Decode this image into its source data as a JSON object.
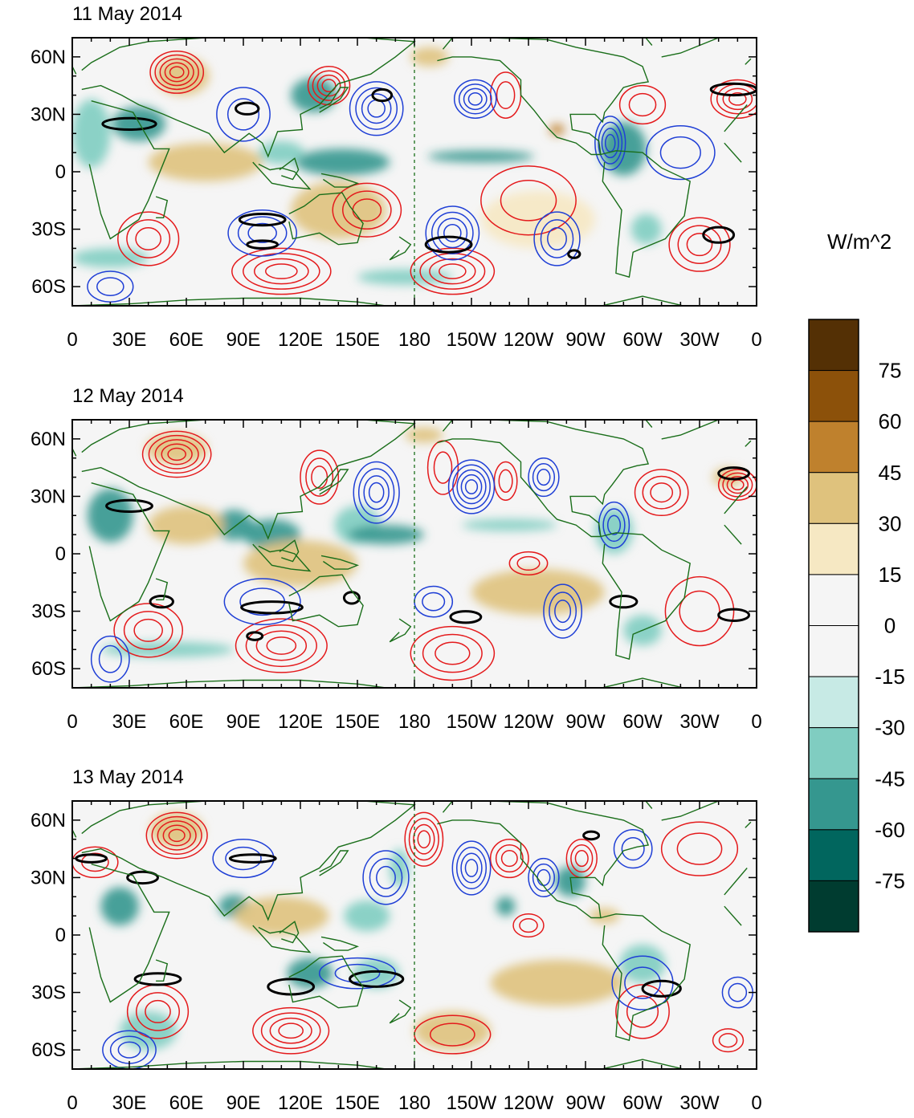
{
  "chart_data": {
    "type": "heatmap",
    "shared_colorbar": {
      "unit_label": "W/m^2",
      "levels": [
        75,
        60,
        45,
        30,
        15,
        0,
        -15,
        -30,
        -45,
        -60,
        -75
      ],
      "colors": [
        "#543005",
        "#8c510a",
        "#bf812d",
        "#dfc27d",
        "#f6e8c3",
        "#f5f5f5",
        "#f5f5f5",
        "#c7eae5",
        "#80cdc1",
        "#35978f",
        "#01665e",
        "#003c30"
      ]
    },
    "x_ticks": [
      "0",
      "30E",
      "60E",
      "90E",
      "120E",
      "150E",
      "180",
      "150W",
      "120W",
      "90W",
      "60W",
      "30W",
      "0"
    ],
    "y_ticks": [
      "60N",
      "30N",
      "0",
      "30S",
      "60S"
    ],
    "x_range_deg": [
      0,
      360
    ],
    "y_range_deg": [
      -70,
      70
    ],
    "dateline_marker_deg": 180,
    "contour_colors": {
      "positive": "#e41a1c",
      "negative": "#1f3fd6",
      "highlight": "#000000",
      "coastline": "#1a6e1a"
    },
    "panels": [
      {
        "title": "11 May 2014",
        "shading": [
          {
            "lon": 35,
            "lat": 25,
            "v": -55,
            "rx": 14,
            "ry": 9
          },
          {
            "lon": 10,
            "lat": 20,
            "v": -45,
            "rx": 10,
            "ry": 18
          },
          {
            "lon": 127,
            "lat": 40,
            "v": -60,
            "rx": 12,
            "ry": 9
          },
          {
            "lon": 142,
            "lat": 5,
            "v": -55,
            "rx": 25,
            "ry": 7
          },
          {
            "lon": 215,
            "lat": 8,
            "v": -60,
            "rx": 28,
            "ry": 3
          },
          {
            "lon": 290,
            "lat": 12,
            "v": -50,
            "rx": 12,
            "ry": 14
          },
          {
            "lon": 302,
            "lat": -30,
            "v": -45,
            "rx": 8,
            "ry": 8
          },
          {
            "lon": 110,
            "lat": 10,
            "v": -40,
            "rx": 12,
            "ry": 6
          },
          {
            "lon": 140,
            "lat": -20,
            "v": 30,
            "rx": 25,
            "ry": 15
          },
          {
            "lon": 70,
            "lat": 5,
            "v": 30,
            "rx": 30,
            "ry": 10
          },
          {
            "lon": 255,
            "lat": 22,
            "v": 45,
            "rx": 4,
            "ry": 3
          },
          {
            "lon": 188,
            "lat": 60,
            "v": 35,
            "rx": 10,
            "ry": 5
          },
          {
            "lon": 245,
            "lat": -25,
            "v": 25,
            "rx": 30,
            "ry": 15
          },
          {
            "lon": 58,
            "lat": 50,
            "v": 30,
            "rx": 14,
            "ry": 10
          },
          {
            "lon": 175,
            "lat": -55,
            "v": -40,
            "rx": 25,
            "ry": 4
          },
          {
            "lon": 20,
            "lat": -45,
            "v": -35,
            "rx": 20,
            "ry": 5
          }
        ],
        "red_centers": [
          {
            "lon": 55,
            "lat": 52,
            "rx": 14,
            "ry": 11,
            "n": 5
          },
          {
            "lon": 135,
            "lat": 45,
            "rx": 11,
            "ry": 10,
            "n": 4
          },
          {
            "lon": 155,
            "lat": -20,
            "rx": 18,
            "ry": 14,
            "n": 3
          },
          {
            "lon": 110,
            "lat": -52,
            "rx": 26,
            "ry": 12,
            "n": 4
          },
          {
            "lon": 40,
            "lat": -35,
            "rx": 16,
            "ry": 14,
            "n": 3
          },
          {
            "lon": 200,
            "lat": -52,
            "rx": 22,
            "ry": 12,
            "n": 4
          },
          {
            "lon": 228,
            "lat": 40,
            "rx": 8,
            "ry": 12,
            "n": 2
          },
          {
            "lon": 240,
            "lat": -15,
            "rx": 25,
            "ry": 18,
            "n": 2
          },
          {
            "lon": 300,
            "lat": 35,
            "rx": 12,
            "ry": 10,
            "n": 2
          },
          {
            "lon": 350,
            "lat": 38,
            "rx": 14,
            "ry": 10,
            "n": 4
          },
          {
            "lon": 330,
            "lat": -38,
            "rx": 16,
            "ry": 14,
            "n": 3
          }
        ],
        "blue_centers": [
          {
            "lon": 100,
            "lat": -32,
            "rx": 18,
            "ry": 12,
            "n": 3
          },
          {
            "lon": 160,
            "lat": 33,
            "rx": 14,
            "ry": 14,
            "n": 4
          },
          {
            "lon": 200,
            "lat": -32,
            "rx": 14,
            "ry": 14,
            "n": 4
          },
          {
            "lon": 212,
            "lat": 38,
            "rx": 11,
            "ry": 10,
            "n": 4
          },
          {
            "lon": 255,
            "lat": -35,
            "rx": 12,
            "ry": 14,
            "n": 3
          },
          {
            "lon": 283,
            "lat": 15,
            "rx": 8,
            "ry": 14,
            "n": 4
          },
          {
            "lon": 90,
            "lat": 30,
            "rx": 14,
            "ry": 14,
            "n": 2
          },
          {
            "lon": 20,
            "lat": -60,
            "rx": 12,
            "ry": 8,
            "n": 2
          },
          {
            "lon": 320,
            "lat": 10,
            "rx": 18,
            "ry": 14,
            "n": 2
          }
        ],
        "black_loops": [
          {
            "lon": 30,
            "lat": 25,
            "rx": 14,
            "ry": 3
          },
          {
            "lon": 92,
            "lat": 33,
            "rx": 6,
            "ry": 3
          },
          {
            "lon": 100,
            "lat": -25,
            "rx": 12,
            "ry": 3
          },
          {
            "lon": 100,
            "lat": -38,
            "rx": 8,
            "ry": 2
          },
          {
            "lon": 163,
            "lat": 40,
            "rx": 5,
            "ry": 3
          },
          {
            "lon": 198,
            "lat": -38,
            "rx": 12,
            "ry": 4
          },
          {
            "lon": 264,
            "lat": -43,
            "rx": 3,
            "ry": 2
          },
          {
            "lon": 348,
            "lat": 43,
            "rx": 12,
            "ry": 3
          },
          {
            "lon": 340,
            "lat": -33,
            "rx": 8,
            "ry": 4
          }
        ]
      },
      {
        "title": "12 May 2014",
        "shading": [
          {
            "lon": 20,
            "lat": 20,
            "v": -55,
            "rx": 12,
            "ry": 14
          },
          {
            "lon": 85,
            "lat": 15,
            "v": -60,
            "rx": 10,
            "ry": 8
          },
          {
            "lon": 105,
            "lat": 10,
            "v": -50,
            "rx": 15,
            "ry": 8
          },
          {
            "lon": 150,
            "lat": 15,
            "v": -45,
            "rx": 12,
            "ry": 10
          },
          {
            "lon": 165,
            "lat": 10,
            "v": -50,
            "rx": 20,
            "ry": 5
          },
          {
            "lon": 230,
            "lat": 15,
            "v": -40,
            "rx": 25,
            "ry": 3
          },
          {
            "lon": 285,
            "lat": 12,
            "v": -45,
            "rx": 10,
            "ry": 12
          },
          {
            "lon": 300,
            "lat": -40,
            "v": -45,
            "rx": 10,
            "ry": 8
          },
          {
            "lon": 60,
            "lat": 15,
            "v": 30,
            "rx": 20,
            "ry": 10
          },
          {
            "lon": 120,
            "lat": -5,
            "v": 30,
            "rx": 30,
            "ry": 12
          },
          {
            "lon": 55,
            "lat": 55,
            "v": 30,
            "rx": 16,
            "ry": 8
          },
          {
            "lon": 185,
            "lat": 62,
            "v": 30,
            "rx": 10,
            "ry": 4
          },
          {
            "lon": 245,
            "lat": -20,
            "v": 30,
            "rx": 35,
            "ry": 12
          },
          {
            "lon": 345,
            "lat": 40,
            "v": 35,
            "rx": 8,
            "ry": 5
          },
          {
            "lon": 50,
            "lat": -50,
            "v": -40,
            "rx": 35,
            "ry": 4
          }
        ],
        "red_centers": [
          {
            "lon": 55,
            "lat": 52,
            "rx": 18,
            "ry": 12,
            "n": 5
          },
          {
            "lon": 130,
            "lat": 40,
            "rx": 10,
            "ry": 14,
            "n": 3
          },
          {
            "lon": 110,
            "lat": -48,
            "rx": 24,
            "ry": 14,
            "n": 4
          },
          {
            "lon": 40,
            "lat": -40,
            "rx": 18,
            "ry": 14,
            "n": 3
          },
          {
            "lon": 200,
            "lat": -52,
            "rx": 22,
            "ry": 14,
            "n": 3
          },
          {
            "lon": 195,
            "lat": 45,
            "rx": 8,
            "ry": 14,
            "n": 2
          },
          {
            "lon": 228,
            "lat": 38,
            "rx": 6,
            "ry": 10,
            "n": 2
          },
          {
            "lon": 310,
            "lat": 32,
            "rx": 14,
            "ry": 12,
            "n": 3
          },
          {
            "lon": 350,
            "lat": 36,
            "rx": 10,
            "ry": 8,
            "n": 4
          },
          {
            "lon": 240,
            "lat": -5,
            "rx": 10,
            "ry": 6,
            "n": 2
          },
          {
            "lon": 330,
            "lat": -30,
            "rx": 18,
            "ry": 18,
            "n": 2
          }
        ],
        "blue_centers": [
          {
            "lon": 100,
            "lat": -25,
            "rx": 20,
            "ry": 12,
            "n": 2
          },
          {
            "lon": 160,
            "lat": 32,
            "rx": 12,
            "ry": 16,
            "n": 4
          },
          {
            "lon": 210,
            "lat": 35,
            "rx": 12,
            "ry": 14,
            "n": 5
          },
          {
            "lon": 248,
            "lat": 40,
            "rx": 8,
            "ry": 10,
            "n": 3
          },
          {
            "lon": 258,
            "lat": -30,
            "rx": 10,
            "ry": 14,
            "n": 3
          },
          {
            "lon": 285,
            "lat": 15,
            "rx": 8,
            "ry": 12,
            "n": 3
          },
          {
            "lon": 20,
            "lat": -55,
            "rx": 10,
            "ry": 12,
            "n": 2
          },
          {
            "lon": 190,
            "lat": -25,
            "rx": 10,
            "ry": 8,
            "n": 2
          }
        ],
        "black_loops": [
          {
            "lon": 30,
            "lat": 25,
            "rx": 12,
            "ry": 3
          },
          {
            "lon": 47,
            "lat": -25,
            "rx": 6,
            "ry": 3
          },
          {
            "lon": 105,
            "lat": -28,
            "rx": 16,
            "ry": 3
          },
          {
            "lon": 96,
            "lat": -43,
            "rx": 4,
            "ry": 2
          },
          {
            "lon": 147,
            "lat": -23,
            "rx": 4,
            "ry": 3
          },
          {
            "lon": 207,
            "lat": -33,
            "rx": 8,
            "ry": 3
          },
          {
            "lon": 290,
            "lat": -25,
            "rx": 7,
            "ry": 3
          },
          {
            "lon": 348,
            "lat": 42,
            "rx": 8,
            "ry": 3
          },
          {
            "lon": 348,
            "lat": -32,
            "rx": 8,
            "ry": 3
          }
        ]
      },
      {
        "title": "13 May 2014",
        "shading": [
          {
            "lon": 25,
            "lat": 15,
            "v": -55,
            "rx": 10,
            "ry": 10
          },
          {
            "lon": 85,
            "lat": 15,
            "v": -55,
            "rx": 8,
            "ry": 6
          },
          {
            "lon": 125,
            "lat": -20,
            "v": -50,
            "rx": 12,
            "ry": 8
          },
          {
            "lon": 160,
            "lat": -20,
            "v": -45,
            "rx": 12,
            "ry": 8
          },
          {
            "lon": 155,
            "lat": 10,
            "v": -45,
            "rx": 12,
            "ry": 8
          },
          {
            "lon": 172,
            "lat": 35,
            "v": -45,
            "rx": 5,
            "ry": 10
          },
          {
            "lon": 262,
            "lat": 28,
            "v": -55,
            "rx": 8,
            "ry": 8
          },
          {
            "lon": 228,
            "lat": 15,
            "v": -50,
            "rx": 5,
            "ry": 5
          },
          {
            "lon": 300,
            "lat": -15,
            "v": -45,
            "rx": 12,
            "ry": 10
          },
          {
            "lon": 55,
            "lat": 55,
            "v": 40,
            "rx": 14,
            "ry": 9
          },
          {
            "lon": 110,
            "lat": 10,
            "v": 30,
            "rx": 25,
            "ry": 10
          },
          {
            "lon": 255,
            "lat": -25,
            "v": 30,
            "rx": 35,
            "ry": 12
          },
          {
            "lon": 280,
            "lat": 10,
            "v": 40,
            "rx": 8,
            "ry": 4
          },
          {
            "lon": 200,
            "lat": -50,
            "v": 30,
            "rx": 20,
            "ry": 10
          },
          {
            "lon": 40,
            "lat": -50,
            "v": -45,
            "rx": 15,
            "ry": 10
          }
        ],
        "red_centers": [
          {
            "lon": 55,
            "lat": 52,
            "rx": 16,
            "ry": 12,
            "n": 5
          },
          {
            "lon": 185,
            "lat": 50,
            "rx": 10,
            "ry": 14,
            "n": 4
          },
          {
            "lon": 115,
            "lat": -50,
            "rx": 20,
            "ry": 12,
            "n": 4
          },
          {
            "lon": 45,
            "lat": -40,
            "rx": 16,
            "ry": 14,
            "n": 3
          },
          {
            "lon": 230,
            "lat": 40,
            "rx": 10,
            "ry": 10,
            "n": 3
          },
          {
            "lon": 268,
            "lat": 40,
            "rx": 8,
            "ry": 10,
            "n": 3
          },
          {
            "lon": 200,
            "lat": -52,
            "rx": 20,
            "ry": 10,
            "n": 2
          },
          {
            "lon": 300,
            "lat": -40,
            "rx": 14,
            "ry": 14,
            "n": 2
          },
          {
            "lon": 240,
            "lat": 5,
            "rx": 8,
            "ry": 6,
            "n": 2
          },
          {
            "lon": 330,
            "lat": 45,
            "rx": 20,
            "ry": 14,
            "n": 2
          },
          {
            "lon": 12,
            "lat": 38,
            "rx": 12,
            "ry": 8,
            "n": 2
          },
          {
            "lon": 345,
            "lat": -55,
            "rx": 8,
            "ry": 6,
            "n": 2
          }
        ],
        "blue_centers": [
          {
            "lon": 30,
            "lat": -60,
            "rx": 14,
            "ry": 10,
            "n": 3
          },
          {
            "lon": 150,
            "lat": -20,
            "rx": 20,
            "ry": 8,
            "n": 2
          },
          {
            "lon": 165,
            "lat": 30,
            "rx": 12,
            "ry": 14,
            "n": 3
          },
          {
            "lon": 210,
            "lat": 35,
            "rx": 10,
            "ry": 14,
            "n": 4
          },
          {
            "lon": 248,
            "lat": 30,
            "rx": 8,
            "ry": 10,
            "n": 3
          },
          {
            "lon": 90,
            "lat": 40,
            "rx": 16,
            "ry": 10,
            "n": 2
          },
          {
            "lon": 300,
            "lat": -25,
            "rx": 16,
            "ry": 14,
            "n": 2
          },
          {
            "lon": 295,
            "lat": 45,
            "rx": 10,
            "ry": 10,
            "n": 2
          },
          {
            "lon": 350,
            "lat": -30,
            "rx": 8,
            "ry": 8,
            "n": 2
          }
        ],
        "black_loops": [
          {
            "lon": 10,
            "lat": 40,
            "rx": 8,
            "ry": 2
          },
          {
            "lon": 37,
            "lat": 30,
            "rx": 8,
            "ry": 3
          },
          {
            "lon": 45,
            "lat": -23,
            "rx": 12,
            "ry": 3
          },
          {
            "lon": 115,
            "lat": -27,
            "rx": 12,
            "ry": 4
          },
          {
            "lon": 95,
            "lat": 40,
            "rx": 12,
            "ry": 2
          },
          {
            "lon": 160,
            "lat": -23,
            "rx": 14,
            "ry": 4
          },
          {
            "lon": 273,
            "lat": 52,
            "rx": 4,
            "ry": 2
          },
          {
            "lon": 310,
            "lat": -28,
            "rx": 10,
            "ry": 4
          }
        ]
      }
    ]
  }
}
